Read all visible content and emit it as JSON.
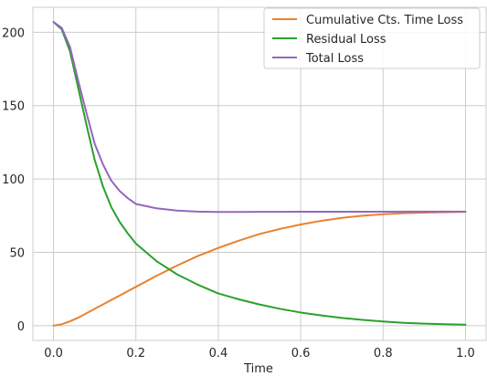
{
  "chart_data": {
    "type": "line",
    "title": "",
    "xlabel": "Time",
    "ylabel": "",
    "xlim": [
      -0.05,
      1.05
    ],
    "ylim": [
      -10,
      217
    ],
    "xticks": [
      0.0,
      0.2,
      0.4,
      0.6,
      0.8,
      1.0
    ],
    "xtick_labels": [
      "0.0",
      "0.2",
      "0.4",
      "0.6",
      "0.8",
      "1.0"
    ],
    "yticks": [
      0,
      50,
      100,
      150,
      200
    ],
    "ytick_labels": [
      "0",
      "50",
      "100",
      "150",
      "200"
    ],
    "grid": true,
    "legend_position": "top-right",
    "x": [
      0.0,
      0.02,
      0.04,
      0.06,
      0.08,
      0.1,
      0.12,
      0.14,
      0.16,
      0.18,
      0.2,
      0.25,
      0.3,
      0.35,
      0.4,
      0.45,
      0.5,
      0.55,
      0.6,
      0.65,
      0.7,
      0.75,
      0.8,
      0.85,
      0.9,
      0.95,
      1.0
    ],
    "series": [
      {
        "name": "Cumulative Cts. Time Loss",
        "color": "#e8822d",
        "values": [
          0,
          1,
          3,
          5.5,
          8.5,
          11.5,
          14.5,
          17.5,
          20.5,
          23.5,
          26.5,
          34,
          41,
          47.5,
          53,
          58,
          62.5,
          66,
          69,
          71.5,
          73.5,
          75,
          76,
          76.7,
          77.1,
          77.4,
          77.6
        ]
      },
      {
        "name": "Residual Loss",
        "color": "#2ca02c",
        "values": [
          207,
          202,
          187,
          162,
          137,
          113,
          95,
          81,
          71,
          63,
          56,
          44,
          35,
          28,
          22,
          18,
          14.5,
          11.5,
          9,
          7,
          5.3,
          4,
          2.9,
          2,
          1.4,
          1,
          0.7
        ]
      },
      {
        "name": "Total Loss",
        "color": "#9467bd",
        "values": [
          207,
          203,
          190,
          167,
          145,
          124,
          110,
          99,
          92,
          87,
          83,
          80,
          78.5,
          77.8,
          77.5,
          77.5,
          77.6,
          77.6,
          77.7,
          77.7,
          77.7,
          77.7,
          77.7,
          77.8,
          77.8,
          77.8,
          77.8
        ]
      }
    ]
  }
}
